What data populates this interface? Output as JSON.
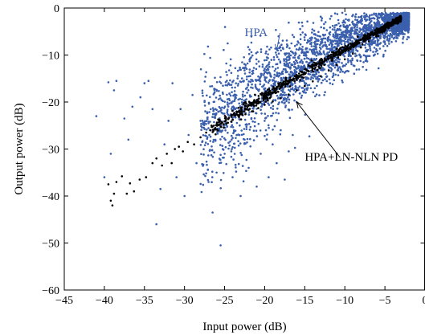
{
  "chart_data": {
    "type": "scatter",
    "title": "",
    "xlabel": "Input power (dB)",
    "ylabel": "Output power (dB)",
    "xlim": [
      -45,
      0
    ],
    "ylim": [
      -60,
      0
    ],
    "xticks": [
      -45,
      -40,
      -35,
      -30,
      -25,
      -20,
      -15,
      -10,
      -5,
      0
    ],
    "yticks": [
      0,
      -10,
      -20,
      -30,
      -40,
      -50,
      -60
    ],
    "grid": false,
    "legend": "none",
    "series": [
      {
        "name": "HPA",
        "color": "#3a5fad",
        "marker_radius": 1.3,
        "count": 3000,
        "points": [
          [
            -41,
            -23
          ],
          [
            -40,
            -36
          ],
          [
            -39.2,
            -31
          ],
          [
            -39.5,
            -15.8
          ],
          [
            -38.5,
            -15.5
          ],
          [
            -38.8,
            -17.5
          ],
          [
            -37.5,
            -23.5
          ],
          [
            -37,
            -28
          ],
          [
            -36.5,
            -21
          ],
          [
            -35.5,
            -19
          ],
          [
            -35,
            -16
          ],
          [
            -34.5,
            -15.5
          ],
          [
            -34,
            -21.5
          ],
          [
            -33.5,
            -46
          ],
          [
            -33,
            -38.5
          ],
          [
            -32.5,
            -29
          ],
          [
            -32,
            -24
          ],
          [
            -31.5,
            -16
          ],
          [
            -31,
            -36
          ],
          [
            -30.5,
            -21.5
          ],
          [
            -30,
            -40
          ],
          [
            -29.5,
            -27
          ],
          [
            -29,
            -18.5
          ],
          [
            -28.5,
            -33
          ],
          [
            -28,
            -24
          ],
          [
            -27.5,
            -20
          ],
          [
            -27,
            -37
          ],
          [
            -26.5,
            -43.5
          ],
          [
            -26,
            -35
          ],
          [
            -25.5,
            -50.5
          ],
          [
            -25,
            -31
          ],
          [
            -24.5,
            -16
          ],
          [
            -24,
            -36
          ],
          [
            -23.5,
            -22
          ],
          [
            -23,
            -40
          ],
          [
            -22.5,
            -28
          ],
          [
            -22,
            -34
          ],
          [
            -21.5,
            -17
          ],
          [
            -21,
            -38
          ],
          [
            -20.5,
            -31
          ],
          [
            -20,
            -24
          ],
          [
            -19.5,
            -36
          ],
          [
            -19,
            -29
          ],
          [
            -18.5,
            -33
          ],
          [
            -18,
            -26
          ],
          [
            -17.5,
            -36.5
          ],
          [
            -17,
            -30.5
          ],
          [
            -16.5,
            -27
          ]
        ]
      },
      {
        "name": "HPA+LN-NLN PD",
        "color": "#000000",
        "marker_radius": 1.3,
        "count": 800,
        "points": [
          [
            -39,
            -42
          ],
          [
            -39.2,
            -41
          ],
          [
            -39.5,
            -37.5
          ],
          [
            -38.8,
            -39.5
          ],
          [
            -38.5,
            -37
          ],
          [
            -37.8,
            -35.8
          ],
          [
            -37.2,
            -39.5
          ],
          [
            -36.8,
            -37.3
          ],
          [
            -36.3,
            -39
          ],
          [
            -35.6,
            -36.5
          ],
          [
            -34.8,
            -36
          ],
          [
            -34,
            -33
          ],
          [
            -33.5,
            -32
          ],
          [
            -32.8,
            -33.5
          ],
          [
            -32.2,
            -31
          ],
          [
            -31.6,
            -33
          ],
          [
            -31.2,
            -30
          ],
          [
            -30.7,
            -29.5
          ],
          [
            -30.2,
            -30.5
          ],
          [
            -29.6,
            -28.5
          ],
          [
            -28.8,
            -29
          ],
          [
            -28,
            -27.5
          ],
          [
            -27.3,
            -26.5
          ],
          [
            -26.8,
            -26
          ],
          [
            -26.2,
            -25.8
          ],
          [
            -25.5,
            -25.2
          ],
          [
            -24.8,
            -24.6
          ],
          [
            -24,
            -23.8
          ],
          [
            -23.2,
            -23.2
          ],
          [
            -22.4,
            -22.6
          ],
          [
            -21.6,
            -22
          ],
          [
            -20.8,
            -21.3
          ],
          [
            -20,
            -20.6
          ],
          [
            -19,
            -19.9
          ],
          [
            -18,
            -19.2
          ],
          [
            -17,
            -18.4
          ],
          [
            -16,
            -17.5
          ],
          [
            -15,
            -16.6
          ],
          [
            -14,
            -15.6
          ],
          [
            -13,
            -14.5
          ],
          [
            -12,
            -13.3
          ],
          [
            -11,
            -12.1
          ],
          [
            -10,
            -10.9
          ],
          [
            -9,
            -9.7
          ],
          [
            -8,
            -8.4
          ],
          [
            -7,
            -7.1
          ],
          [
            -6,
            -5.9
          ],
          [
            -5,
            -4.7
          ],
          [
            -4,
            -3.5
          ],
          [
            -3,
            -2.4
          ]
        ]
      }
    ],
    "annotations": [
      {
        "text": "HPA",
        "color": "#3a5fad",
        "text_at": [
          -22.5,
          -6
        ],
        "arrow_to": [
          -18.5,
          -9
        ]
      },
      {
        "text": "HPA+LN-NLN PD",
        "color": "#000000",
        "text_at": [
          -15,
          -32.5
        ],
        "arrow_to": [
          -16,
          -20
        ]
      }
    ]
  }
}
